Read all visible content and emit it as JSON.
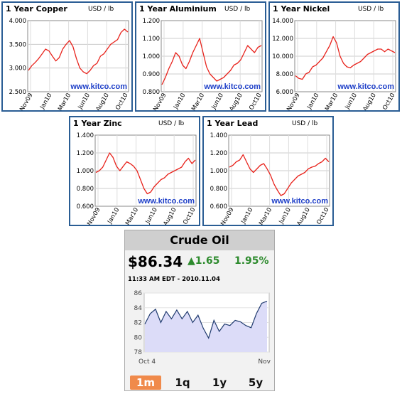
{
  "metal_panels": [
    {
      "title": "1 Year Copper",
      "unit": "USD / lb",
      "watermark": "www.kitco.com"
    },
    {
      "title": "1 Year Aluminium",
      "unit": "USD / lb",
      "watermark": "www.kitco.com"
    },
    {
      "title": "1 Year Nickel",
      "unit": "USD / lb",
      "watermark": "www.kitco.com"
    },
    {
      "title": "1 Year Zinc",
      "unit": "USD / lb",
      "watermark": "www.kitco.com"
    },
    {
      "title": "1 Year Lead",
      "unit": "USD / lb",
      "watermark": "www.kitco.com"
    }
  ],
  "oil": {
    "title": "Crude Oil",
    "price": "$86.34",
    "change": "1.65",
    "change_arrow": "up-arrow",
    "percent": "1.95%",
    "timestamp": "11:33 AM EDT - 2010.11.04",
    "ranges": [
      "1m",
      "1q",
      "1y",
      "5y"
    ],
    "active_range": "1m",
    "colors": {
      "line": "#1f3a6e",
      "fill": "#dcdcf8",
      "up": "#2e8b2e",
      "active_button": "#f08a4b"
    }
  },
  "chart_data": [
    {
      "type": "line",
      "name": "copper",
      "x_tick_labels": [
        "Nov09",
        "Jan10",
        "Mar10",
        "Jun10",
        "Aug10",
        "Oct10"
      ],
      "y_tick_labels": [
        "4.000",
        "3.500",
        "3.000",
        "2.500"
      ],
      "ylim": [
        2.5,
        4.0
      ],
      "grid": true,
      "line_color": "#e8231c",
      "y": [
        2.95,
        3.05,
        3.12,
        3.2,
        3.3,
        3.4,
        3.36,
        3.25,
        3.15,
        3.22,
        3.4,
        3.5,
        3.58,
        3.45,
        3.2,
        3.0,
        2.92,
        2.88,
        2.95,
        3.05,
        3.1,
        3.25,
        3.3,
        3.4,
        3.5,
        3.55,
        3.6,
        3.75,
        3.82,
        3.76
      ]
    },
    {
      "type": "line",
      "name": "aluminium",
      "x_tick_labels": [
        "Nov09",
        "Jan10",
        "Mar10",
        "Jun10",
        "Aug10",
        "Oct10"
      ],
      "y_tick_labels": [
        "1.200",
        "1.100",
        "1.000",
        "0.900",
        "0.800"
      ],
      "ylim": [
        0.8,
        1.2
      ],
      "grid": true,
      "line_color": "#e8231c",
      "y": [
        0.84,
        0.88,
        0.93,
        0.97,
        1.02,
        1.0,
        0.95,
        0.93,
        0.97,
        1.02,
        1.06,
        1.1,
        1.02,
        0.94,
        0.9,
        0.88,
        0.86,
        0.87,
        0.88,
        0.9,
        0.92,
        0.95,
        0.96,
        0.98,
        1.02,
        1.06,
        1.04,
        1.02,
        1.05,
        1.06
      ]
    },
    {
      "type": "line",
      "name": "nickel",
      "x_tick_labels": [
        "Nov09",
        "Jan10",
        "Mar10",
        "Jun10",
        "Aug10",
        "Oct10"
      ],
      "y_tick_labels": [
        "14.000",
        "12.000",
        "10.000",
        "8.000",
        "6.000"
      ],
      "ylim": [
        6.0,
        14.0
      ],
      "grid": true,
      "line_color": "#e8231c",
      "y": [
        7.8,
        7.5,
        7.4,
        8.0,
        8.2,
        8.8,
        9.0,
        9.4,
        9.8,
        10.5,
        11.2,
        12.2,
        11.5,
        10.0,
        9.2,
        8.8,
        8.7,
        9.0,
        9.2,
        9.4,
        9.8,
        10.2,
        10.4,
        10.6,
        10.8,
        10.8,
        10.5,
        10.8,
        10.6,
        10.4
      ]
    },
    {
      "type": "line",
      "name": "zinc",
      "x_tick_labels": [
        "Nov09",
        "Jan10",
        "Mar10",
        "Jun10",
        "Aug10",
        "Oct10"
      ],
      "y_tick_labels": [
        "1.400",
        "1.200",
        "1.000",
        "0.800",
        "0.600"
      ],
      "ylim": [
        0.6,
        1.4
      ],
      "grid": true,
      "line_color": "#e8231c",
      "y": [
        0.98,
        1.0,
        1.04,
        1.12,
        1.2,
        1.15,
        1.05,
        1.0,
        1.05,
        1.1,
        1.08,
        1.05,
        1.0,
        0.9,
        0.8,
        0.74,
        0.76,
        0.82,
        0.86,
        0.9,
        0.92,
        0.96,
        0.98,
        1.0,
        1.02,
        1.04,
        1.1,
        1.14,
        1.08,
        1.12
      ]
    },
    {
      "type": "line",
      "name": "lead",
      "x_tick_labels": [
        "Nov09",
        "Jan10",
        "Mar10",
        "Jun10",
        "Aug10",
        "Oct10"
      ],
      "y_tick_labels": [
        "1.400",
        "1.200",
        "1.000",
        "0.800",
        "0.600"
      ],
      "ylim": [
        0.6,
        1.4
      ],
      "grid": true,
      "line_color": "#e8231c",
      "y": [
        1.04,
        1.06,
        1.1,
        1.12,
        1.18,
        1.1,
        1.02,
        0.98,
        1.02,
        1.06,
        1.08,
        1.02,
        0.95,
        0.85,
        0.78,
        0.72,
        0.74,
        0.8,
        0.86,
        0.9,
        0.94,
        0.96,
        0.98,
        1.02,
        1.04,
        1.05,
        1.08,
        1.1,
        1.14,
        1.1
      ]
    },
    {
      "type": "area",
      "name": "crude-oil-1m",
      "x_tick_labels": [
        "Oct 4",
        "Nov"
      ],
      "y_tick_labels": [
        "86",
        "84",
        "82",
        "80",
        "78"
      ],
      "ylim": [
        78,
        86
      ],
      "y": [
        81.8,
        83.2,
        83.8,
        82.0,
        83.5,
        82.5,
        83.7,
        82.5,
        83.5,
        82.0,
        83.0,
        81.2,
        79.9,
        82.3,
        80.8,
        81.8,
        81.6,
        82.3,
        82.1,
        81.6,
        81.3,
        83.2,
        84.6,
        84.9
      ]
    }
  ]
}
